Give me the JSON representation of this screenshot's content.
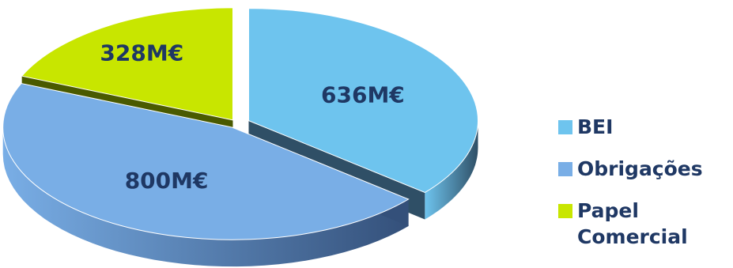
{
  "chart_data": {
    "type": "pie",
    "style": "3d-exploded",
    "categories": [
      "BEI",
      "Obrigações",
      "Papel Comercial"
    ],
    "values": [
      636,
      800,
      328
    ],
    "value_labels": [
      "636M€",
      "800M€",
      "328M€"
    ],
    "unit": "M€",
    "colors": [
      "#6ec4ee",
      "#79aee6",
      "#c8e600"
    ],
    "legend_position": "right"
  },
  "legend": {
    "items": [
      {
        "label": "BEI",
        "color": "#6ec4ee"
      },
      {
        "label": "Obrigações",
        "color": "#79aee6"
      },
      {
        "label": "Papel Comercial",
        "color": "#c8e600"
      }
    ]
  }
}
